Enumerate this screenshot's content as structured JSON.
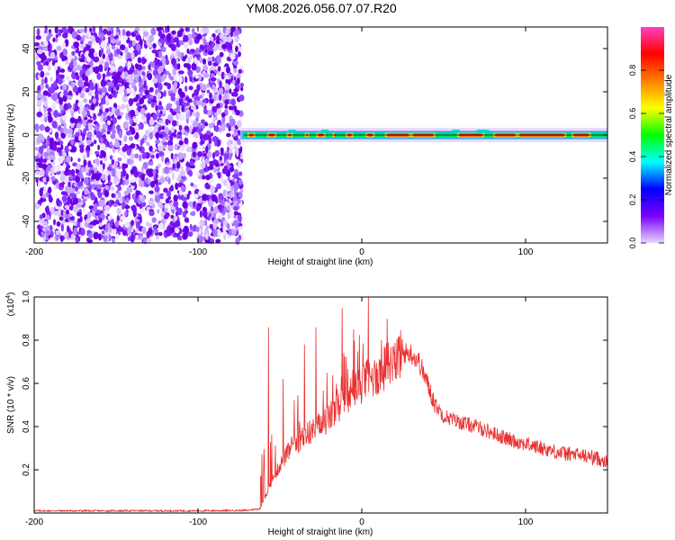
{
  "title": "YM08.2026.056.07.07.R20",
  "chart_data": [
    {
      "type": "heatmap",
      "xlabel": "Height of straight line (km)",
      "ylabel": "Frequency (Hz)",
      "xlim": [
        -200,
        150
      ],
      "ylim": [
        -50,
        50
      ],
      "xticks": [
        -200,
        -100,
        0,
        100
      ],
      "yticks": [
        -40,
        -20,
        0,
        20,
        40
      ],
      "noise_region_x": [
        -200,
        -72
      ],
      "signal_band_hz": [
        -1.5,
        1.5
      ],
      "colorbar": {
        "label": "Normalized spectral amplitude",
        "range": [
          0,
          1
        ],
        "ticks": [
          0.0,
          0.2,
          0.4,
          0.6,
          0.8
        ],
        "colors": [
          "#e6d6ff",
          "#7a00ff",
          "#0000ff",
          "#00ffff",
          "#00ff00",
          "#ffff00",
          "#ff8000",
          "#ff0000",
          "#ff40c0"
        ]
      }
    },
    {
      "type": "line",
      "xlabel": "Height of straight line (km)",
      "ylabel": "SNR (10 * v/v)",
      "y_multiplier_label": "(x10",
      "y_multiplier_exp": "4",
      "y_multiplier_close": ")",
      "xlim": [
        -200,
        150
      ],
      "ylim": [
        0,
        1.0
      ],
      "xticks": [
        -200,
        -100,
        0,
        100
      ],
      "yticks": [
        0.2,
        0.4,
        0.6,
        0.8,
        1.0
      ],
      "line_color": "#e83030",
      "envelope": {
        "x": [
          -200,
          -150,
          -100,
          -70,
          -62,
          -60,
          -55,
          -50,
          -45,
          -40,
          -35,
          -30,
          -25,
          -20,
          -15,
          -10,
          -5,
          0,
          5,
          10,
          15,
          20,
          25,
          30,
          35,
          40,
          45,
          50,
          60,
          70,
          80,
          90,
          100,
          110,
          120,
          130,
          140,
          150
        ],
        "y": [
          0.01,
          0.01,
          0.01,
          0.012,
          0.02,
          0.06,
          0.15,
          0.22,
          0.28,
          0.32,
          0.36,
          0.38,
          0.4,
          0.44,
          0.48,
          0.52,
          0.56,
          0.6,
          0.62,
          0.64,
          0.68,
          0.72,
          0.74,
          0.74,
          0.7,
          0.6,
          0.5,
          0.45,
          0.42,
          0.4,
          0.37,
          0.34,
          0.32,
          0.3,
          0.28,
          0.27,
          0.26,
          0.24
        ]
      },
      "peaks": [
        {
          "x": -57,
          "y": 0.86
        },
        {
          "x": -48,
          "y": 0.62
        },
        {
          "x": -35,
          "y": 0.78
        },
        {
          "x": -28,
          "y": 0.86
        },
        {
          "x": -12,
          "y": 0.95
        },
        {
          "x": 4,
          "y": 1.0
        },
        {
          "x": -5,
          "y": 0.85
        },
        {
          "x": 12,
          "y": 0.8
        },
        {
          "x": 23,
          "y": 0.82
        }
      ]
    }
  ]
}
